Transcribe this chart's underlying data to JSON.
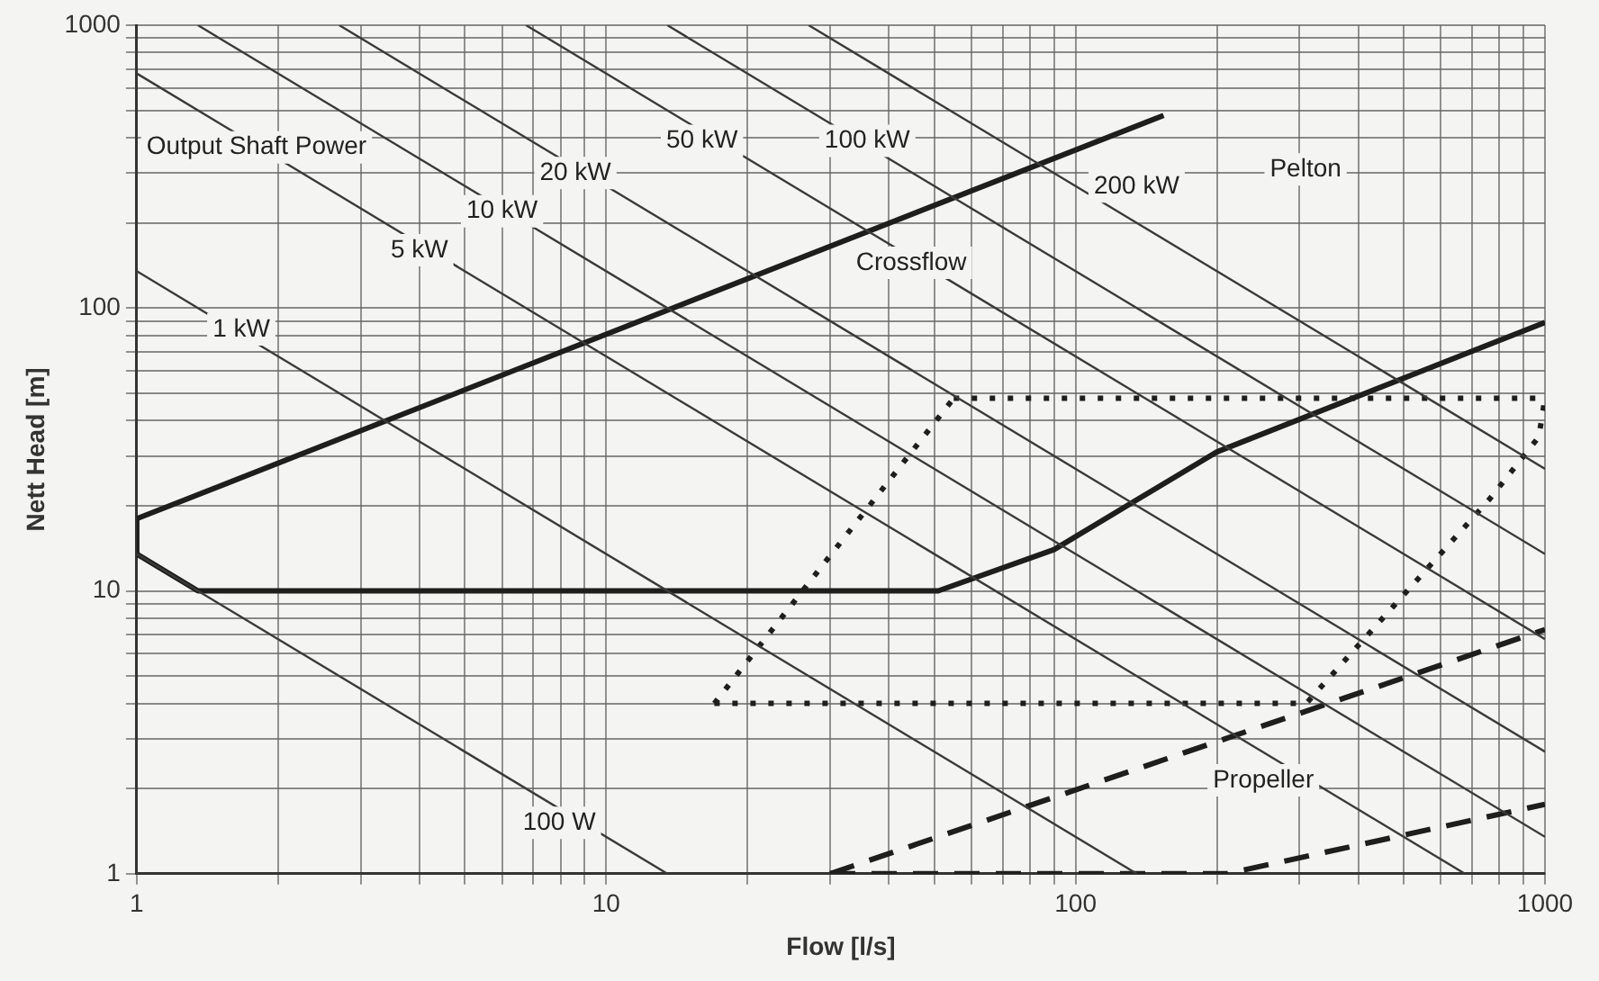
{
  "chart_data": {
    "type": "line",
    "xlabel": "Flow [l/s]",
    "ylabel": "Nett Head [m]",
    "log": "xy",
    "grid": true,
    "legend": false,
    "marker": "none",
    "xlim": [
      1,
      1000
    ],
    "ylim": [
      1,
      1000
    ],
    "xticks": [
      1,
      {
        "value": 2,
        "label": null
      },
      {
        "value": 3,
        "label": null
      },
      {
        "value": 4,
        "label": null
      },
      {
        "value": 5,
        "label": null
      },
      {
        "value": 6,
        "label": null
      },
      {
        "value": 7,
        "label": null
      },
      {
        "value": 8,
        "label": null
      },
      {
        "value": 9,
        "label": null
      },
      10,
      {
        "value": 20,
        "label": null
      },
      {
        "value": 30,
        "label": null
      },
      {
        "value": 40,
        "label": null
      },
      {
        "value": 50,
        "label": null
      },
      {
        "value": 60,
        "label": null
      },
      {
        "value": 70,
        "label": null
      },
      {
        "value": 80,
        "label": null
      },
      {
        "value": 90,
        "label": null
      },
      100,
      {
        "value": 200,
        "label": null
      },
      {
        "value": 300,
        "label": null
      },
      {
        "value": 400,
        "label": null
      },
      {
        "value": 500,
        "label": null
      },
      {
        "value": 600,
        "label": null
      },
      {
        "value": 700,
        "label": null
      },
      {
        "value": 800,
        "label": null
      },
      {
        "value": 900,
        "label": null
      },
      1000
    ],
    "yticks": [
      1,
      {
        "value": 2,
        "label": null
      },
      {
        "value": 3,
        "label": null
      },
      {
        "value": 4,
        "label": null
      },
      {
        "value": 5,
        "label": null
      },
      {
        "value": 6,
        "label": null
      },
      {
        "value": 7,
        "label": null
      },
      {
        "value": 8,
        "label": null
      },
      {
        "value": 9,
        "label": null
      },
      10,
      {
        "value": 20,
        "label": null
      },
      {
        "value": 30,
        "label": null
      },
      {
        "value": 40,
        "label": null
      },
      {
        "value": 50,
        "label": null
      },
      {
        "value": 60,
        "label": null
      },
      {
        "value": 70,
        "label": null
      },
      {
        "value": 80,
        "label": null
      },
      {
        "value": 90,
        "label": null
      },
      100,
      {
        "value": 200,
        "label": null
      },
      {
        "value": 300,
        "label": null
      },
      {
        "value": 400,
        "label": null
      },
      {
        "value": 500,
        "label": null
      },
      {
        "value": 600,
        "label": null
      },
      {
        "value": 700,
        "label": null
      },
      {
        "value": 800,
        "label": null
      },
      {
        "value": 900,
        "label": null
      },
      1000
    ],
    "series": [
      {
        "color": "#3a3a3a",
        "line_style": "solid",
        "x": [
          1,
          13.5
        ],
        "values": [
          13.5,
          1
        ]
      },
      {
        "color": "#3a3a3a",
        "line_style": "solid",
        "x": [
          1,
          135
        ],
        "values": [
          135,
          1
        ]
      },
      {
        "color": "#3a3a3a",
        "line_style": "solid",
        "x": [
          1,
          675
        ],
        "values": [
          675,
          1
        ]
      },
      {
        "color": "#3a3a3a",
        "line_style": "solid",
        "x": [
          1.35,
          1000
        ],
        "values": [
          1000,
          1.35
        ]
      },
      {
        "color": "#3a3a3a",
        "line_style": "solid",
        "x": [
          2.7,
          1000
        ],
        "values": [
          1000,
          2.7
        ]
      },
      {
        "color": "#3a3a3a",
        "line_style": "solid",
        "x": [
          6.75,
          1000
        ],
        "values": [
          1000,
          6.75
        ]
      },
      {
        "color": "#3a3a3a",
        "line_style": "solid",
        "x": [
          13.5,
          1000
        ],
        "values": [
          1000,
          13.5
        ]
      },
      {
        "color": "#3a3a3a",
        "line_style": "solid",
        "x": [
          27,
          1000
        ],
        "values": [
          1000,
          27
        ]
      },
      {
        "color": "#1e1e1e",
        "line_style": "solid",
        "x": [
          1,
          154
        ],
        "values": [
          18,
          480
        ]
      },
      {
        "color": "#1e1e1e",
        "line_style": "solid",
        "x": [
          1,
          1
        ],
        "values": [
          13.5,
          18
        ]
      },
      {
        "color": "#1e1e1e",
        "line_style": "solid",
        "x": [
          1,
          1.35,
          51,
          90,
          200,
          1000
        ],
        "values": [
          13.5,
          10,
          10,
          14,
          31,
          89
        ]
      },
      {
        "color": "#1e1e1e",
        "line_style": "dotted",
        "x": [
          55,
          1000
        ],
        "values": [
          48,
          48
        ]
      },
      {
        "color": "#1e1e1e",
        "line_style": "dotted",
        "x": [
          17,
          55
        ],
        "values": [
          4,
          48
        ]
      },
      {
        "color": "#1e1e1e",
        "line_style": "dotted",
        "x": [
          17,
          310,
          760,
          970,
          1000
        ],
        "values": [
          4,
          4,
          21,
          35,
          48
        ]
      },
      {
        "color": "#1e1e1e",
        "line_style": "dashed",
        "x": [
          30,
          1000
        ],
        "values": [
          1,
          7.3
        ]
      },
      {
        "color": "#1e1e1e",
        "line_style": "dashed",
        "x": [
          30,
          210,
          1000
        ],
        "values": [
          1,
          1,
          1.76
        ]
      }
    ],
    "annotations": [
      {
        "text": "Output Shaft Power",
        "x": 1.8,
        "y": 370
      },
      "100 W",
      {
        "text": "1 kW",
        "x": 1.67,
        "y": 84
      },
      {
        "text": "5 kW",
        "x": 4,
        "y": 160
      },
      {
        "text": "10 kW",
        "x": 6,
        "y": 220
      },
      {
        "text": "20 kW",
        "x": 8.6,
        "y": 300
      },
      {
        "text": "50 kW",
        "x": 16,
        "y": 390
      },
      {
        "text": "100 kW",
        "x": 36,
        "y": 390
      },
      "200 kW",
      "Pelton",
      "Crossflow",
      "Propeller"
    ]
  }
}
